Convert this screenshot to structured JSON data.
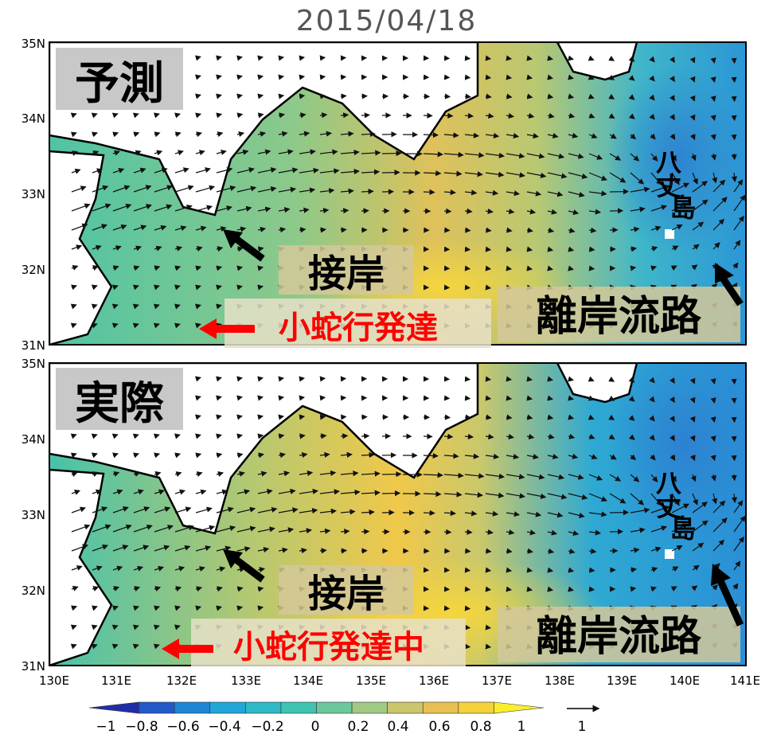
{
  "title": "2015/04/18",
  "axes": {
    "x_ticks": [
      "130E",
      "131E",
      "132E",
      "133E",
      "134E",
      "135E",
      "136E",
      "137E",
      "138E",
      "139E",
      "140E",
      "141E"
    ],
    "y_ticks_top": [
      "35N",
      "34N",
      "33N",
      "32N",
      "31N"
    ],
    "y_ticks_bottom": [
      "35N",
      "34N",
      "33N",
      "32N",
      "31N"
    ],
    "lon_range": [
      130,
      141
    ],
    "lat_range": [
      31,
      35
    ]
  },
  "panels": [
    {
      "label": "予測",
      "annotations": {
        "island": [
          "八",
          "丈",
          "島"
        ],
        "coastal": "接岸",
        "offshore": "離岸流路",
        "meander": "小蛇行発達"
      }
    },
    {
      "label": "実際",
      "annotations": {
        "island": [
          "八",
          "丈",
          "島"
        ],
        "coastal": "接岸",
        "offshore": "離岸流路",
        "meander": "小蛇行発達中"
      }
    }
  ],
  "colorbar": {
    "labels": [
      "−1",
      "−0.8",
      "−0.6",
      "−0.4",
      "−0.2",
      "0",
      "0.2",
      "0.4",
      "0.6",
      "0.8",
      "1"
    ],
    "vector_ref": "1",
    "colors": [
      "#1f2ea8",
      "#2159c8",
      "#1f86d6",
      "#21a6d8",
      "#2eb9c7",
      "#3ec4b0",
      "#6cc79c",
      "#a0c983",
      "#cbc66b",
      "#e8c052",
      "#f4d23a",
      "#f8ee2c"
    ]
  },
  "colors": {
    "land": "#ffffff",
    "coast": "#000000",
    "label_bg": "#c8c8c8",
    "annotation_red": "#ff0000",
    "annotation_black": "#000000"
  }
}
